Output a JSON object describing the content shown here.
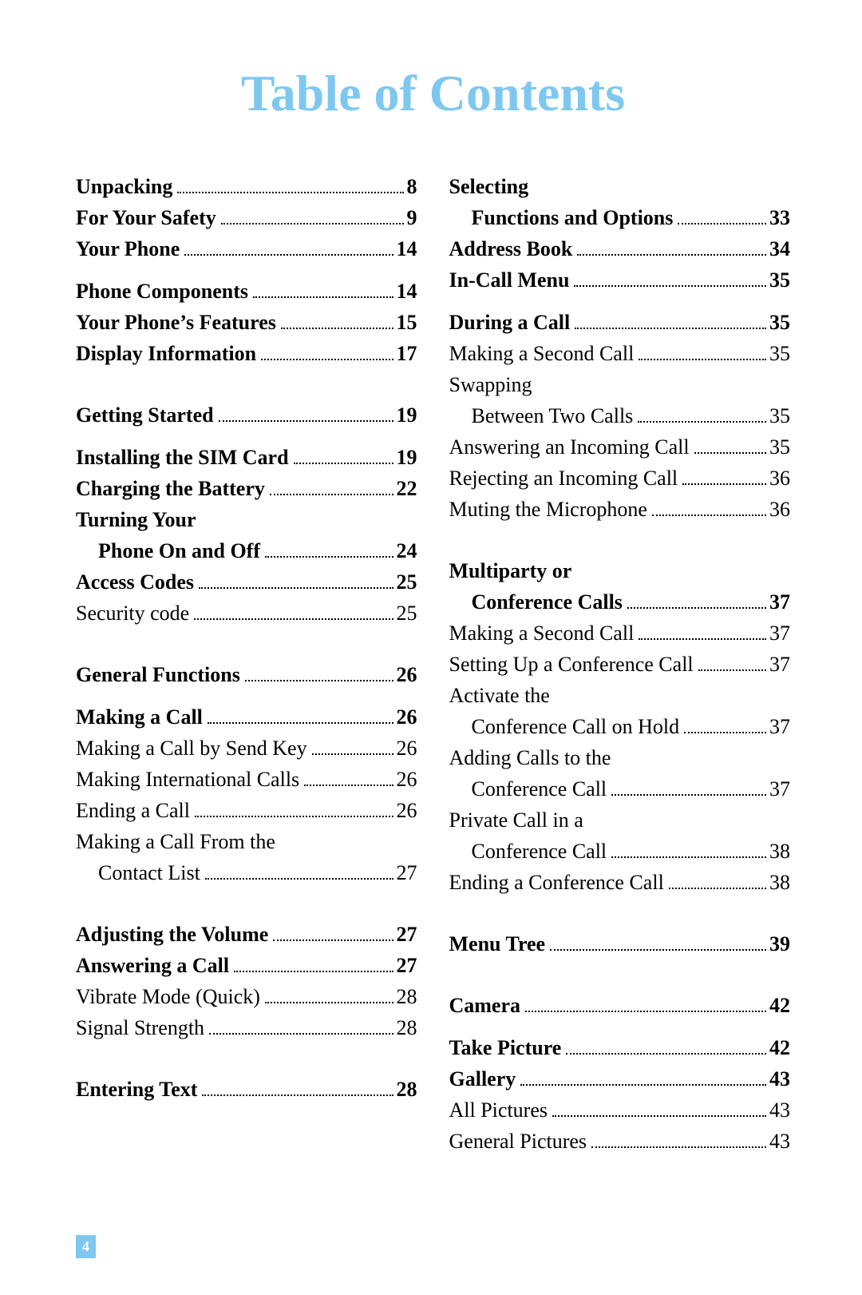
{
  "title": "Table of Contents",
  "title_color": "#7ec8f0",
  "page_number": "4",
  "page_number_bg": "#7ec8f0",
  "page_number_color": "#ffffff",
  "background_color": "#ffffff",
  "text_color": "#000000",
  "font_family": "Times New Roman",
  "title_fontsize_pt": 48,
  "body_fontsize_pt": 20,
  "columns": {
    "left": [
      {
        "type": "entry",
        "bold": true,
        "indent": 0,
        "text": "Unpacking",
        "page": "8"
      },
      {
        "type": "entry",
        "bold": true,
        "indent": 0,
        "text": "For Your Safety",
        "page": "9"
      },
      {
        "type": "entry",
        "bold": true,
        "indent": 0,
        "text": "Your Phone",
        "page": "14"
      },
      {
        "type": "gap",
        "size": "sm"
      },
      {
        "type": "entry",
        "bold": true,
        "indent": 0,
        "text": "Phone Components",
        "page": "14"
      },
      {
        "type": "entry",
        "bold": true,
        "indent": 0,
        "text": "Your Phone’s Features",
        "page": "15"
      },
      {
        "type": "entry",
        "bold": true,
        "indent": 0,
        "text": "Display Information",
        "page": "17"
      },
      {
        "type": "gap",
        "size": "md"
      },
      {
        "type": "entry",
        "bold": true,
        "indent": 0,
        "text": "Getting Started",
        "page": "19"
      },
      {
        "type": "gap",
        "size": "sm"
      },
      {
        "type": "entry",
        "bold": true,
        "indent": 0,
        "text": "Installing the SIM Card",
        "page": "19"
      },
      {
        "type": "entry",
        "bold": true,
        "indent": 0,
        "text": "Charging the Battery",
        "page": "22"
      },
      {
        "type": "line",
        "bold": true,
        "indent": 0,
        "text": "Turning Your"
      },
      {
        "type": "entry",
        "bold": true,
        "indent": 1,
        "text": "Phone On and Off",
        "page": "24"
      },
      {
        "type": "entry",
        "bold": true,
        "indent": 0,
        "text": "Access Codes",
        "page": "25"
      },
      {
        "type": "entry",
        "bold": false,
        "indent": 0,
        "text": "Security code",
        "page": "25"
      },
      {
        "type": "gap",
        "size": "md"
      },
      {
        "type": "entry",
        "bold": true,
        "indent": 0,
        "text": "General Functions",
        "page": "26"
      },
      {
        "type": "gap",
        "size": "sm"
      },
      {
        "type": "entry",
        "bold": true,
        "indent": 0,
        "text": "Making a Call",
        "page": "26"
      },
      {
        "type": "entry",
        "bold": false,
        "indent": 0,
        "text": "Making a Call by Send Key",
        "page": "26"
      },
      {
        "type": "entry",
        "bold": false,
        "indent": 0,
        "text": "Making International Calls",
        "page": "26"
      },
      {
        "type": "entry",
        "bold": false,
        "indent": 0,
        "text": "Ending a Call",
        "page": "26"
      },
      {
        "type": "line",
        "bold": false,
        "indent": 0,
        "text": "Making a Call From the"
      },
      {
        "type": "entry",
        "bold": false,
        "indent": 1,
        "text": "Contact List",
        "page": "27"
      },
      {
        "type": "gap",
        "size": "md"
      },
      {
        "type": "entry",
        "bold": true,
        "indent": 0,
        "text": "Adjusting the Volume",
        "page": "27"
      },
      {
        "type": "entry",
        "bold": true,
        "indent": 0,
        "text": "Answering a Call",
        "page": "27"
      },
      {
        "type": "entry",
        "bold": false,
        "indent": 0,
        "text": "Vibrate Mode (Quick)",
        "page": "28"
      },
      {
        "type": "entry",
        "bold": false,
        "indent": 0,
        "text": "Signal Strength",
        "page": "28"
      },
      {
        "type": "gap",
        "size": "md"
      },
      {
        "type": "entry",
        "bold": true,
        "indent": 0,
        "text": "Entering Text",
        "page": "28"
      }
    ],
    "right": [
      {
        "type": "line",
        "bold": true,
        "indent": 0,
        "text": "Selecting"
      },
      {
        "type": "entry",
        "bold": true,
        "indent": 1,
        "text": "Functions and Options",
        "page": "33"
      },
      {
        "type": "entry",
        "bold": true,
        "indent": 0,
        "text": "Address Book",
        "page": "34"
      },
      {
        "type": "entry",
        "bold": true,
        "indent": 0,
        "text": "In-Call Menu",
        "page": "35"
      },
      {
        "type": "gap",
        "size": "sm"
      },
      {
        "type": "entry",
        "bold": true,
        "indent": 0,
        "text": "During a Call",
        "page": "35"
      },
      {
        "type": "entry",
        "bold": false,
        "indent": 0,
        "text": "Making a Second Call",
        "page": "35"
      },
      {
        "type": "line",
        "bold": false,
        "indent": 0,
        "text": "Swapping"
      },
      {
        "type": "entry",
        "bold": false,
        "indent": 1,
        "text": "Between Two Calls",
        "page": "35"
      },
      {
        "type": "entry",
        "bold": false,
        "indent": 0,
        "text": "Answering an Incoming Call",
        "page": "35"
      },
      {
        "type": "entry",
        "bold": false,
        "indent": 0,
        "text": "Rejecting an Incoming Call",
        "page": "36"
      },
      {
        "type": "entry",
        "bold": false,
        "indent": 0,
        "text": "Muting the Microphone",
        "page": "36"
      },
      {
        "type": "gap",
        "size": "md"
      },
      {
        "type": "line",
        "bold": true,
        "indent": 0,
        "text": "Multiparty or"
      },
      {
        "type": "entry",
        "bold": true,
        "indent": 1,
        "text": "Conference Calls",
        "page": "37"
      },
      {
        "type": "entry",
        "bold": false,
        "indent": 0,
        "text": "Making a Second Call",
        "page": "37"
      },
      {
        "type": "entry",
        "bold": false,
        "indent": 0,
        "text": "Setting Up a Conference Call",
        "page": "37"
      },
      {
        "type": "line",
        "bold": false,
        "indent": 0,
        "text": "Activate the"
      },
      {
        "type": "entry",
        "bold": false,
        "indent": 1,
        "text": "Conference Call on Hold",
        "page": "37"
      },
      {
        "type": "line",
        "bold": false,
        "indent": 0,
        "text": "Adding Calls to the"
      },
      {
        "type": "entry",
        "bold": false,
        "indent": 1,
        "text": "Conference Call",
        "page": "37"
      },
      {
        "type": "line",
        "bold": false,
        "indent": 0,
        "text": "Private Call in a"
      },
      {
        "type": "entry",
        "bold": false,
        "indent": 1,
        "text": "Conference Call",
        "page": "38"
      },
      {
        "type": "entry",
        "bold": false,
        "indent": 0,
        "text": "Ending a Conference Call",
        "page": "38"
      },
      {
        "type": "gap",
        "size": "md"
      },
      {
        "type": "entry",
        "bold": true,
        "indent": 0,
        "text": "Menu Tree",
        "page": "39"
      },
      {
        "type": "gap",
        "size": "md"
      },
      {
        "type": "entry",
        "bold": true,
        "indent": 0,
        "text": "Camera",
        "page": "42"
      },
      {
        "type": "gap",
        "size": "sm"
      },
      {
        "type": "entry",
        "bold": true,
        "indent": 0,
        "text": "Take Picture",
        "page": "42"
      },
      {
        "type": "entry",
        "bold": true,
        "indent": 0,
        "text": "Gallery",
        "page": "43"
      },
      {
        "type": "entry",
        "bold": false,
        "indent": 0,
        "text": "All Pictures",
        "page": "43"
      },
      {
        "type": "entry",
        "bold": false,
        "indent": 0,
        "text": "General Pictures",
        "page": "43"
      }
    ]
  }
}
